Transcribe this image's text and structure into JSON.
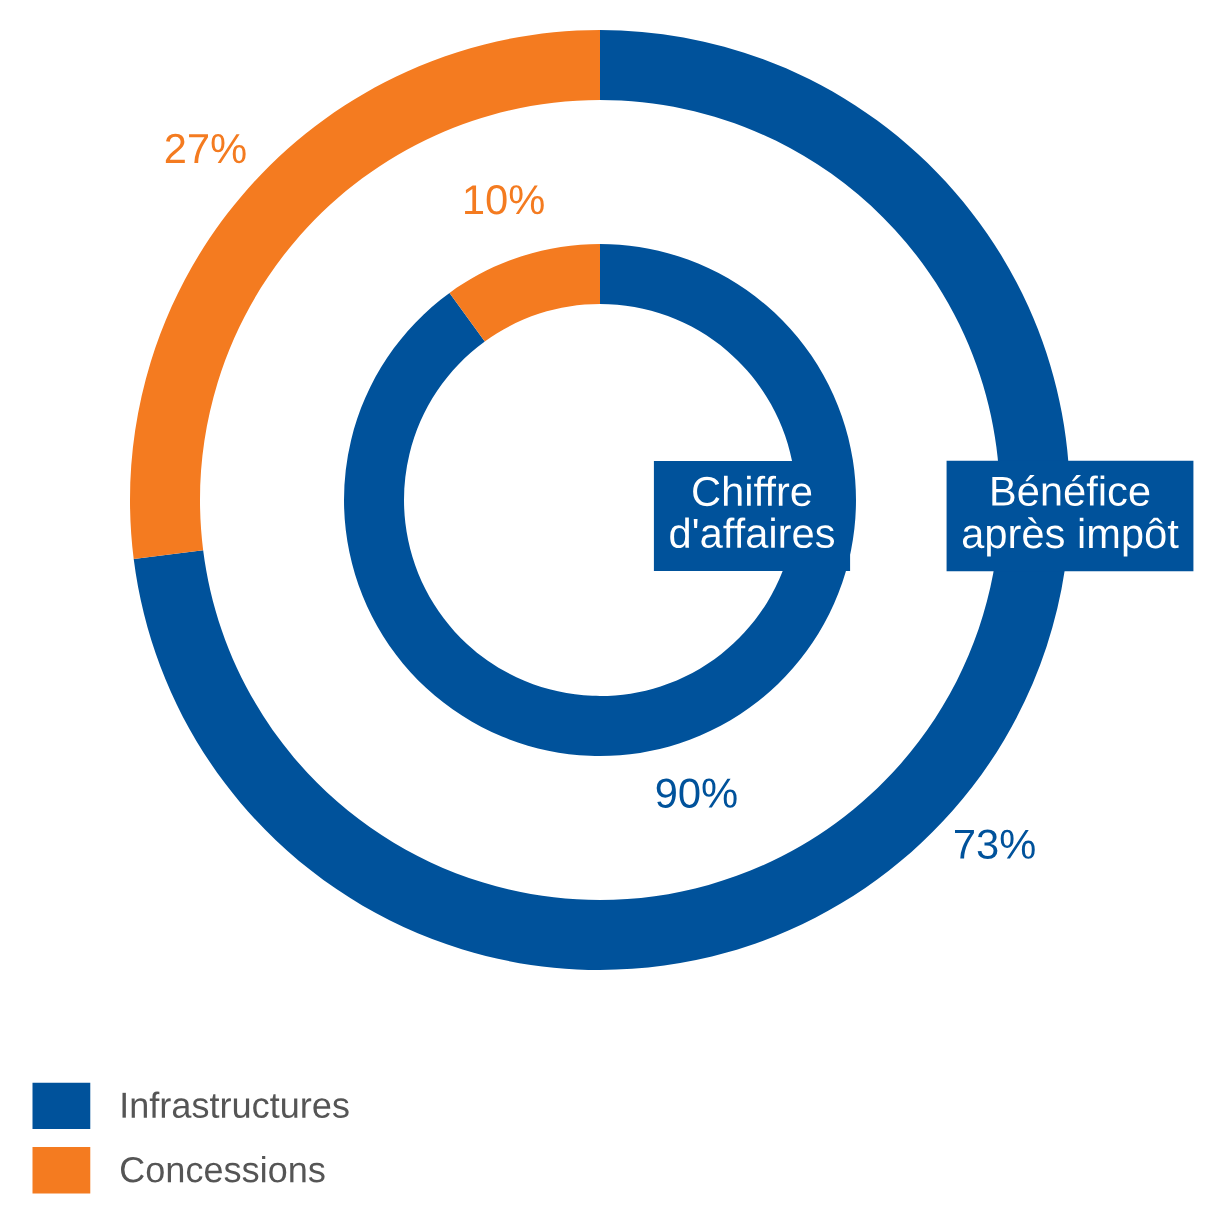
{
  "chart_data": {
    "type": "donut",
    "categories": [
      "Infrastructures",
      "Concessions"
    ],
    "colors": [
      "#00529b",
      "#f47b20"
    ],
    "legend": "bottom left",
    "series": [
      {
        "name": "Chiffre d'affaires",
        "values": [
          90,
          10
        ],
        "value_labels": [
          "90%",
          "10%"
        ]
      },
      {
        "name": "Bénéfice après impôt",
        "values": [
          73,
          27
        ],
        "value_labels": [
          "73%",
          "27%"
        ]
      }
    ]
  }
}
